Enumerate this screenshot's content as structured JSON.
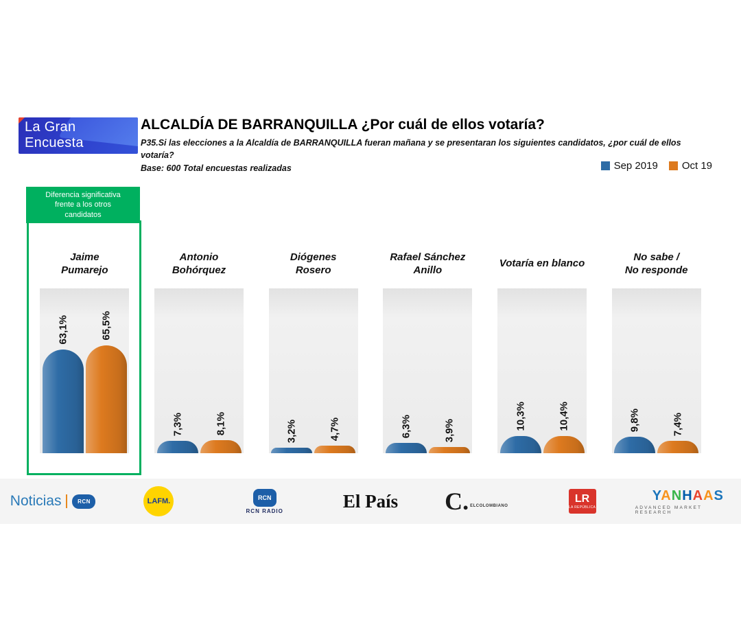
{
  "header": {
    "brand": {
      "line1": "La Gran",
      "line2": "Encuesta"
    },
    "title": "ALCALDÍA DE BARRANQUILLA ¿Por cuál de ellos votaría?",
    "question": "P35.Si las elecciones a la Alcaldía de BARRANQUILLA fueran mañana y se presentaran los siguientes candidatos, ¿por cuál de ellos votaría?",
    "base": "Base: 600 Total encuestas realizadas"
  },
  "legend": [
    {
      "label": "Sep 2019",
      "color": "#2e6ca6"
    },
    {
      "label": "Oct 19",
      "color": "#dd7a1f"
    }
  ],
  "highlight": {
    "note": "Diferencia significativa\nfrente a los otros\ncandidatos",
    "color": "#00b05f"
  },
  "chart_data": {
    "type": "bar",
    "title": "ALCALDÍA DE BARRANQUILLA ¿Por cuál de ellos votaría?",
    "categories": [
      "Jaime\nPumarejo",
      "Antonio\nBohórquez",
      "Diógenes\nRosero",
      "Rafael Sánchez\nAnillo",
      "Votaría en blanco",
      "No sabe /\nNo responde"
    ],
    "series": [
      {
        "name": "Sep 2019",
        "color": "#2e6ca6",
        "values": [
          63.1,
          7.3,
          3.2,
          6.3,
          10.3,
          9.8
        ],
        "labels": [
          "63,1%",
          "7,3%",
          "3,2%",
          "6,3%",
          "10,3%",
          "9,8%"
        ]
      },
      {
        "name": "Oct 19",
        "color": "#dd7a1f",
        "values": [
          65.5,
          8.1,
          4.7,
          3.9,
          10.4,
          7.4
        ],
        "labels": [
          "65,5%",
          "8,1%",
          "4,7%",
          "3,9%",
          "10,4%",
          "7,4%"
        ]
      }
    ],
    "ylim": [
      0,
      100
    ],
    "legend_position": "top-right",
    "highlighted_category": "Jaime\nPumarejo"
  },
  "footer": {
    "logos": [
      {
        "id": "noticias-rcn",
        "text": "Noticias",
        "sub": "RCN"
      },
      {
        "id": "la-fm",
        "text": "LAFM."
      },
      {
        "id": "rcn-radio",
        "text": "RCN",
        "sub": "RCN RADIO"
      },
      {
        "id": "el-pais",
        "text": "El País"
      },
      {
        "id": "el-colombiano",
        "text": "C.",
        "sub": "ELCOLOMBIANO"
      },
      {
        "id": "la-republica",
        "text": "LR",
        "sub": "LA REPÚBLICA"
      },
      {
        "id": "yanhaas",
        "text": "YANHAAS",
        "sub": "ADVANCED MARKET RESEARCH"
      }
    ]
  }
}
